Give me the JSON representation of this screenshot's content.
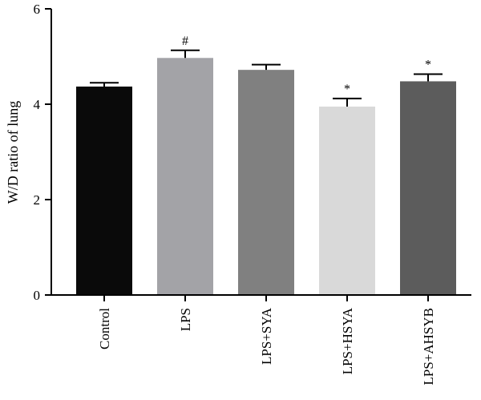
{
  "chart_data": {
    "type": "bar",
    "title": "",
    "xlabel": "",
    "ylabel": "W/D ratio of lung",
    "ylim": [
      0,
      6
    ],
    "yticks": [
      0,
      2,
      4,
      6
    ],
    "ytick_labels": [
      "0",
      "2",
      "4",
      "6"
    ],
    "grid": false,
    "legend": "none",
    "categories": [
      "Control",
      "LPS",
      "LPS+SYA",
      "LPS+HSYA",
      "LPS+AHSYB"
    ],
    "values": [
      4.37,
      4.97,
      4.72,
      3.95,
      4.48
    ],
    "errors": [
      0.08,
      0.16,
      0.11,
      0.17,
      0.15
    ],
    "significance": [
      "",
      "#",
      "",
      "*",
      "*"
    ],
    "colors": [
      "#0a0a0a",
      "#a3a3a7",
      "#808080",
      "#d9d9d9",
      "#5c5c5c"
    ]
  }
}
